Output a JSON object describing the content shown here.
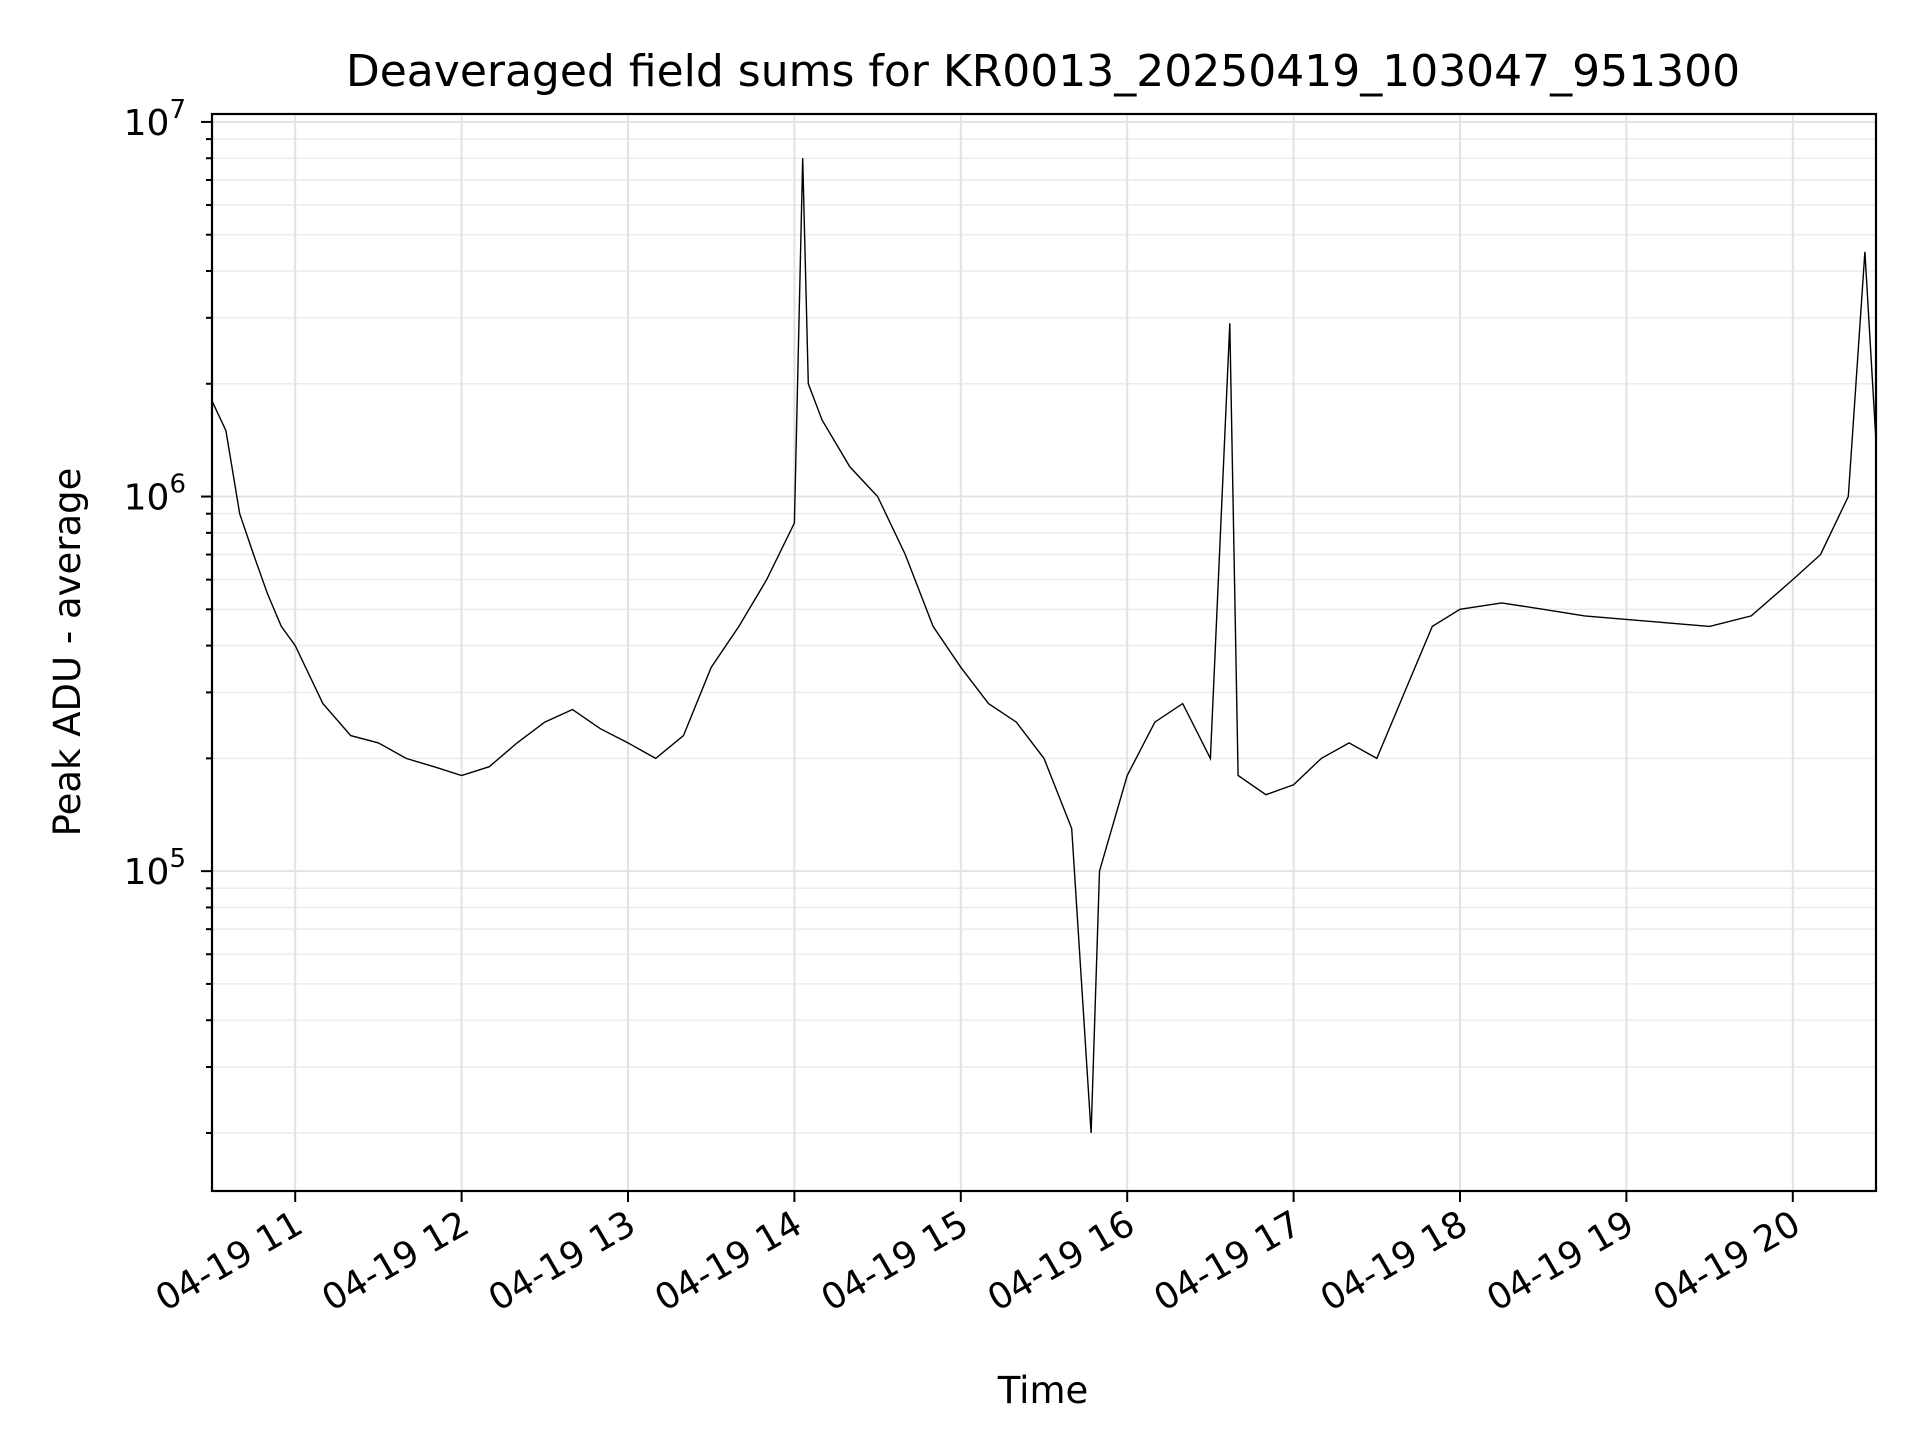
{
  "chart_data": {
    "type": "line",
    "title": "Deaveraged field sums for KR0013_20250419_103047_951300",
    "xlabel": "Time",
    "ylabel": "Peak ADU - average",
    "x_scale": "time",
    "y_scale": "log",
    "xlim": [
      "2025-04-19 10:30",
      "2025-04-19 20:30"
    ],
    "ylim": [
      14000,
      10500000
    ],
    "grid": "both (major and minor)",
    "x_ticks": [
      {
        "value": "2025-04-19 11:00",
        "label": "04-19 11"
      },
      {
        "value": "2025-04-19 12:00",
        "label": "04-19 12"
      },
      {
        "value": "2025-04-19 13:00",
        "label": "04-19 13"
      },
      {
        "value": "2025-04-19 14:00",
        "label": "04-19 14"
      },
      {
        "value": "2025-04-19 15:00",
        "label": "04-19 15"
      },
      {
        "value": "2025-04-19 16:00",
        "label": "04-19 16"
      },
      {
        "value": "2025-04-19 17:00",
        "label": "04-19 17"
      },
      {
        "value": "2025-04-19 18:00",
        "label": "04-19 18"
      },
      {
        "value": "2025-04-19 19:00",
        "label": "04-19 19"
      },
      {
        "value": "2025-04-19 20:00",
        "label": "04-19 20"
      }
    ],
    "y_ticks": [
      {
        "value": 100000,
        "base": "10",
        "exp": "5"
      },
      {
        "value": 1000000,
        "base": "10",
        "exp": "6"
      },
      {
        "value": 10000000,
        "base": "10",
        "exp": "7"
      }
    ],
    "series": [
      {
        "color": "#000000",
        "points": [
          [
            "2025-04-19 10:30",
            1800000
          ],
          [
            "2025-04-19 10:35",
            1500000
          ],
          [
            "2025-04-19 10:40",
            900000
          ],
          [
            "2025-04-19 10:45",
            700000
          ],
          [
            "2025-04-19 10:50",
            550000
          ],
          [
            "2025-04-19 10:55",
            450000
          ],
          [
            "2025-04-19 11:00",
            400000
          ],
          [
            "2025-04-19 11:10",
            280000
          ],
          [
            "2025-04-19 11:20",
            230000
          ],
          [
            "2025-04-19 11:30",
            220000
          ],
          [
            "2025-04-19 11:40",
            200000
          ],
          [
            "2025-04-19 11:50",
            190000
          ],
          [
            "2025-04-19 12:00",
            180000
          ],
          [
            "2025-04-19 12:10",
            190000
          ],
          [
            "2025-04-19 12:20",
            220000
          ],
          [
            "2025-04-19 12:30",
            250000
          ],
          [
            "2025-04-19 12:40",
            270000
          ],
          [
            "2025-04-19 12:50",
            240000
          ],
          [
            "2025-04-19 13:00",
            220000
          ],
          [
            "2025-04-19 13:10",
            200000
          ],
          [
            "2025-04-19 13:20",
            230000
          ],
          [
            "2025-04-19 13:30",
            350000
          ],
          [
            "2025-04-19 13:40",
            450000
          ],
          [
            "2025-04-19 13:50",
            600000
          ],
          [
            "2025-04-19 14:00",
            850000
          ],
          [
            "2025-04-19 14:03",
            8000000
          ],
          [
            "2025-04-19 14:05",
            2000000
          ],
          [
            "2025-04-19 14:10",
            1600000
          ],
          [
            "2025-04-19 14:20",
            1200000
          ],
          [
            "2025-04-19 14:30",
            1000000
          ],
          [
            "2025-04-19 14:40",
            700000
          ],
          [
            "2025-04-19 14:50",
            450000
          ],
          [
            "2025-04-19 15:00",
            350000
          ],
          [
            "2025-04-19 15:10",
            280000
          ],
          [
            "2025-04-19 15:20",
            250000
          ],
          [
            "2025-04-19 15:30",
            200000
          ],
          [
            "2025-04-19 15:40",
            130000
          ],
          [
            "2025-04-19 15:47",
            20000
          ],
          [
            "2025-04-19 15:50",
            100000
          ],
          [
            "2025-04-19 16:00",
            180000
          ],
          [
            "2025-04-19 16:10",
            250000
          ],
          [
            "2025-04-19 16:20",
            280000
          ],
          [
            "2025-04-19 16:30",
            200000
          ],
          [
            "2025-04-19 16:37",
            2900000
          ],
          [
            "2025-04-19 16:40",
            180000
          ],
          [
            "2025-04-19 16:50",
            160000
          ],
          [
            "2025-04-19 17:00",
            170000
          ],
          [
            "2025-04-19 17:10",
            200000
          ],
          [
            "2025-04-19 17:20",
            220000
          ],
          [
            "2025-04-19 17:30",
            200000
          ],
          [
            "2025-04-19 17:40",
            300000
          ],
          [
            "2025-04-19 17:50",
            450000
          ],
          [
            "2025-04-19 18:00",
            500000
          ],
          [
            "2025-04-19 18:15",
            520000
          ],
          [
            "2025-04-19 18:30",
            500000
          ],
          [
            "2025-04-19 18:45",
            480000
          ],
          [
            "2025-04-19 19:00",
            470000
          ],
          [
            "2025-04-19 19:15",
            460000
          ],
          [
            "2025-04-19 19:30",
            450000
          ],
          [
            "2025-04-19 19:45",
            480000
          ],
          [
            "2025-04-19 20:00",
            600000
          ],
          [
            "2025-04-19 20:10",
            700000
          ],
          [
            "2025-04-19 20:20",
            1000000
          ],
          [
            "2025-04-19 20:26",
            4500000
          ],
          [
            "2025-04-19 20:30",
            1400000
          ]
        ]
      }
    ]
  }
}
